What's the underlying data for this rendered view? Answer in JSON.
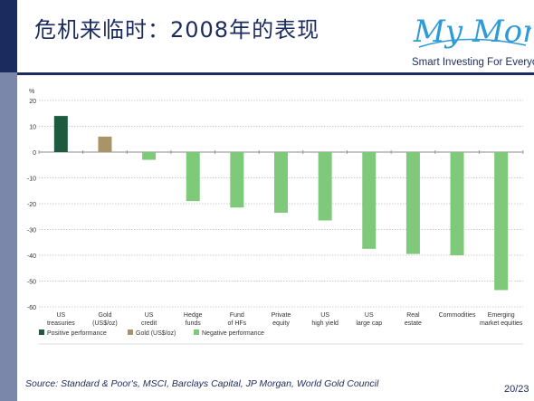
{
  "slide": {
    "title": "危机来临时：2008年的表现",
    "logo_text": "My Money",
    "tagline": "Smart Investing For Everyone.",
    "source": "Source: Standard & Poor's, MSCI, Barclays Capital, JP Morgan, World Gold Council",
    "page": "20/23"
  },
  "colors": {
    "navy": "#1c2b5e",
    "logo_blue": "#2f9bd6",
    "positive": "#1e5b3e",
    "gold": "#a89466",
    "negative": "#7ec97a"
  },
  "chart_data": {
    "type": "bar",
    "ylabel": "%",
    "ylim": [
      -60,
      20
    ],
    "yticks": [
      20,
      10,
      0,
      -10,
      -20,
      -30,
      -40,
      -50,
      -60
    ],
    "grid": true,
    "categories": [
      [
        "US",
        "treasuries"
      ],
      [
        "Gold",
        "(US$/oz)"
      ],
      [
        "US",
        "credit"
      ],
      [
        "Hedge",
        "funds"
      ],
      [
        "Fund",
        "of HFs"
      ],
      [
        "Private",
        "equity"
      ],
      [
        "US",
        "high yield"
      ],
      [
        "US",
        "large cap"
      ],
      [
        "Real",
        "estate"
      ],
      [
        "Commodities"
      ],
      [
        "Emerging",
        "market equities"
      ]
    ],
    "values": [
      14,
      6,
      -3,
      -19,
      -21.5,
      -23.5,
      -26.5,
      -37.5,
      -39.5,
      -40,
      -53.5
    ],
    "bar_kind": [
      "positive",
      "gold",
      "negative",
      "negative",
      "negative",
      "negative",
      "negative",
      "negative",
      "negative",
      "negative",
      "negative"
    ],
    "legend": [
      {
        "label": "Positive performance",
        "kind": "positive"
      },
      {
        "label": "Gold (US$/oz)",
        "kind": "gold"
      },
      {
        "label": "Negative performance",
        "kind": "negative"
      }
    ],
    "legend_position": "bottom-left"
  }
}
